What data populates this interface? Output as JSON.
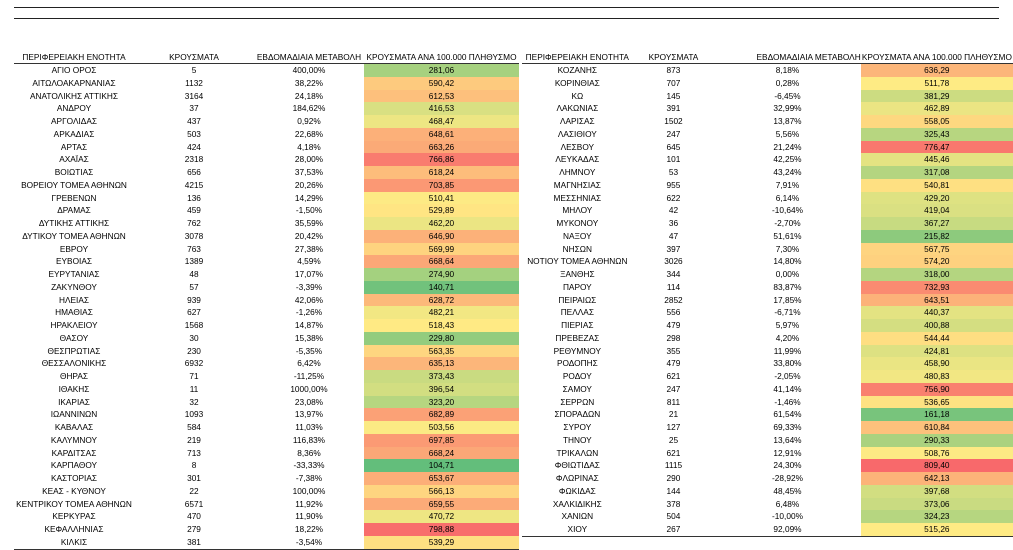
{
  "headers": [
    "ΠΕΡΙΦΕΡΕΙΑΚΗ ΕΝΟΤΗΤΑ",
    "ΚΡΟΥΣΜΑΤΑ",
    "ΕΒΔΟΜΑΔΙΑΙΑ ΜΕΤΑΒΟΛΗ",
    "ΚΡΟΥΣΜΑΤΑ ΑΝΑ 100.000 ΠΛΗΘΥΣΜΟ"
  ],
  "color_scale": {
    "low": "#63be7b",
    "mid": "#ffeb84",
    "high": "#f8696b"
  },
  "left_rows": [
    [
      "ΑΓΙΟ ΟΡΟΣ",
      "5",
      "400,00%",
      "281,06"
    ],
    [
      "ΑΙΤΩΛΟΑΚΑΡΝΑΝΙΑΣ",
      "1132",
      "38,22%",
      "590,42"
    ],
    [
      "ΑΝΑΤΟΛΙΚΗΣ ΑΤΤΙΚΗΣ",
      "3164",
      "24,18%",
      "612,53"
    ],
    [
      "ΑΝΔΡΟΥ",
      "37",
      "184,62%",
      "416,53"
    ],
    [
      "ΑΡΓΟΛΙΔΑΣ",
      "437",
      "0,92%",
      "468,47"
    ],
    [
      "ΑΡΚΑΔΙΑΣ",
      "503",
      "22,68%",
      "648,61"
    ],
    [
      "ΑΡΤΑΣ",
      "424",
      "4,18%",
      "663,26"
    ],
    [
      "ΑΧΑΪΑΣ",
      "2318",
      "28,00%",
      "766,86"
    ],
    [
      "ΒΟΙΩΤΙΑΣ",
      "656",
      "37,53%",
      "618,24"
    ],
    [
      "ΒΟΡΕΙΟΥ ΤΟΜΕΑ ΑΘΗΝΩΝ",
      "4215",
      "20,26%",
      "703,85"
    ],
    [
      "ΓΡΕΒΕΝΩΝ",
      "136",
      "14,29%",
      "510,41"
    ],
    [
      "ΔΡΑΜΑΣ",
      "459",
      "-1,50%",
      "529,89"
    ],
    [
      "ΔΥΤΙΚΗΣ ΑΤΤΙΚΗΣ",
      "762",
      "35,59%",
      "462,20"
    ],
    [
      "ΔΥΤΙΚΟΥ ΤΟΜΕΑ ΑΘΗΝΩΝ",
      "3078",
      "20,42%",
      "646,90"
    ],
    [
      "ΕΒΡΟΥ",
      "763",
      "27,38%",
      "569,99"
    ],
    [
      "ΕΥΒΟΙΑΣ",
      "1389",
      "4,59%",
      "668,64"
    ],
    [
      "ΕΥΡΥΤΑΝΙΑΣ",
      "48",
      "17,07%",
      "274,90"
    ],
    [
      "ΖΑΚΥΝΘΟΥ",
      "57",
      "-3,39%",
      "140,71"
    ],
    [
      "ΗΛΕΙΑΣ",
      "939",
      "42,06%",
      "628,72"
    ],
    [
      "ΗΜΑΘΙΑΣ",
      "627",
      "-1,26%",
      "482,21"
    ],
    [
      "ΗΡΑΚΛΕΙΟΥ",
      "1568",
      "14,87%",
      "518,43"
    ],
    [
      "ΘΑΣΟΥ",
      "30",
      "15,38%",
      "229,80"
    ],
    [
      "ΘΕΣΠΡΩΤΙΑΣ",
      "230",
      "-5,35%",
      "563,35"
    ],
    [
      "ΘΕΣΣΑΛΟΝΙΚΗΣ",
      "6932",
      "6,42%",
      "635,13"
    ],
    [
      "ΘΗΡΑΣ",
      "71",
      "-11,25%",
      "373,43"
    ],
    [
      "ΙΘΑΚΗΣ",
      "11",
      "1000,00%",
      "396,54"
    ],
    [
      "ΙΚΑΡΙΑΣ",
      "32",
      "23,08%",
      "323,20"
    ],
    [
      "ΙΩΑΝΝΙΝΩΝ",
      "1093",
      "13,97%",
      "682,89"
    ],
    [
      "ΚΑΒΑΛΑΣ",
      "584",
      "11,03%",
      "503,56"
    ],
    [
      "ΚΑΛΥΜΝΟΥ",
      "219",
      "116,83%",
      "697,85"
    ],
    [
      "ΚΑΡΔΙΤΣΑΣ",
      "713",
      "8,36%",
      "668,24"
    ],
    [
      "ΚΑΡΠΑΘΟΥ",
      "8",
      "-33,33%",
      "104,71"
    ],
    [
      "ΚΑΣΤΟΡΙΑΣ",
      "301",
      "-7,38%",
      "653,67"
    ],
    [
      "ΚΕΑΣ - ΚΥΘΝΟΥ",
      "22",
      "100,00%",
      "566,13"
    ],
    [
      "ΚΕΝΤΡΙΚΟΥ ΤΟΜΕΑ ΑΘΗΝΩΝ",
      "6571",
      "11,92%",
      "659,55"
    ],
    [
      "ΚΕΡΚΥΡΑΣ",
      "470",
      "11,90%",
      "470,72"
    ],
    [
      "ΚΕΦΑΛΛΗΝΙΑΣ",
      "279",
      "18,22%",
      "798,88"
    ],
    [
      "ΚΙΛΚΙΣ",
      "381",
      "-3,54%",
      "539,29"
    ]
  ],
  "right_rows": [
    [
      "ΚΟΖΑΝΗΣ",
      "873",
      "8,18%",
      "636,29"
    ],
    [
      "ΚΟΡΙΝΘΙΑΣ",
      "707",
      "0,28%",
      "511,78"
    ],
    [
      "ΚΩ",
      "145",
      "-6,45%",
      "381,29"
    ],
    [
      "ΛΑΚΩΝΙΑΣ",
      "391",
      "32,99%",
      "462,89"
    ],
    [
      "ΛΑΡΙΣΑΣ",
      "1502",
      "13,87%",
      "558,05"
    ],
    [
      "ΛΑΣΙΘΙΟΥ",
      "247",
      "5,56%",
      "325,43"
    ],
    [
      "ΛΕΣΒΟΥ",
      "645",
      "21,24%",
      "776,47"
    ],
    [
      "ΛΕΥΚΑΔΑΣ",
      "101",
      "42,25%",
      "445,46"
    ],
    [
      "ΛΗΜΝΟΥ",
      "53",
      "43,24%",
      "317,08"
    ],
    [
      "ΜΑΓΝΗΣΙΑΣ",
      "955",
      "7,91%",
      "540,81"
    ],
    [
      "ΜΕΣΣΗΝΙΑΣ",
      "622",
      "6,14%",
      "429,20"
    ],
    [
      "ΜΗΛΟΥ",
      "42",
      "-10,64%",
      "419,04"
    ],
    [
      "ΜΥΚΟΝΟΥ",
      "36",
      "-2,70%",
      "367,27"
    ],
    [
      "ΝΑΞΟΥ",
      "47",
      "51,61%",
      "215,82"
    ],
    [
      "ΝΗΣΩΝ",
      "397",
      "7,30%",
      "567,75"
    ],
    [
      "ΝΟΤΙΟΥ ΤΟΜΕΑ ΑΘΗΝΩΝ",
      "3026",
      "14,80%",
      "574,20"
    ],
    [
      "ΞΑΝΘΗΣ",
      "344",
      "0,00%",
      "318,00"
    ],
    [
      "ΠΑΡΟΥ",
      "114",
      "83,87%",
      "732,93"
    ],
    [
      "ΠΕΙΡΑΙΩΣ",
      "2852",
      "17,85%",
      "643,51"
    ],
    [
      "ΠΕΛΛΑΣ",
      "556",
      "-6,71%",
      "440,37"
    ],
    [
      "ΠΙΕΡΙΑΣ",
      "479",
      "5,97%",
      "400,88"
    ],
    [
      "ΠΡΕΒΕΖΑΣ",
      "298",
      "4,20%",
      "544,44"
    ],
    [
      "ΡΕΘΥΜΝΟΥ",
      "355",
      "11,99%",
      "424,81"
    ],
    [
      "ΡΟΔΟΠΗΣ",
      "479",
      "33,80%",
      "458,90"
    ],
    [
      "ΡΟΔΟΥ",
      "621",
      "-2,05%",
      "480,83"
    ],
    [
      "ΣΑΜΟΥ",
      "247",
      "41,14%",
      "756,90"
    ],
    [
      "ΣΕΡΡΩΝ",
      "811",
      "-1,46%",
      "536,65"
    ],
    [
      "ΣΠΟΡΑΔΩΝ",
      "21",
      "61,54%",
      "161,18"
    ],
    [
      "ΣΥΡΟΥ",
      "127",
      "69,33%",
      "610,84"
    ],
    [
      "ΤΗΝΟΥ",
      "25",
      "13,64%",
      "290,33"
    ],
    [
      "ΤΡΙΚΑΛΩΝ",
      "621",
      "12,91%",
      "508,76"
    ],
    [
      "ΦΘΙΩΤΙΔΑΣ",
      "1115",
      "24,30%",
      "809,40"
    ],
    [
      "ΦΛΩΡΙΝΑΣ",
      "290",
      "-28,92%",
      "642,13"
    ],
    [
      "ΦΩΚΙΔΑΣ",
      "144",
      "48,45%",
      "397,68"
    ],
    [
      "ΧΑΛΚΙΔΙΚΗΣ",
      "378",
      "6,48%",
      "373,06"
    ],
    [
      "ΧΑΝΙΩΝ",
      "504",
      "-10,00%",
      "324,23"
    ],
    [
      "ΧΙΟΥ",
      "267",
      "92,09%",
      "515,26"
    ]
  ]
}
